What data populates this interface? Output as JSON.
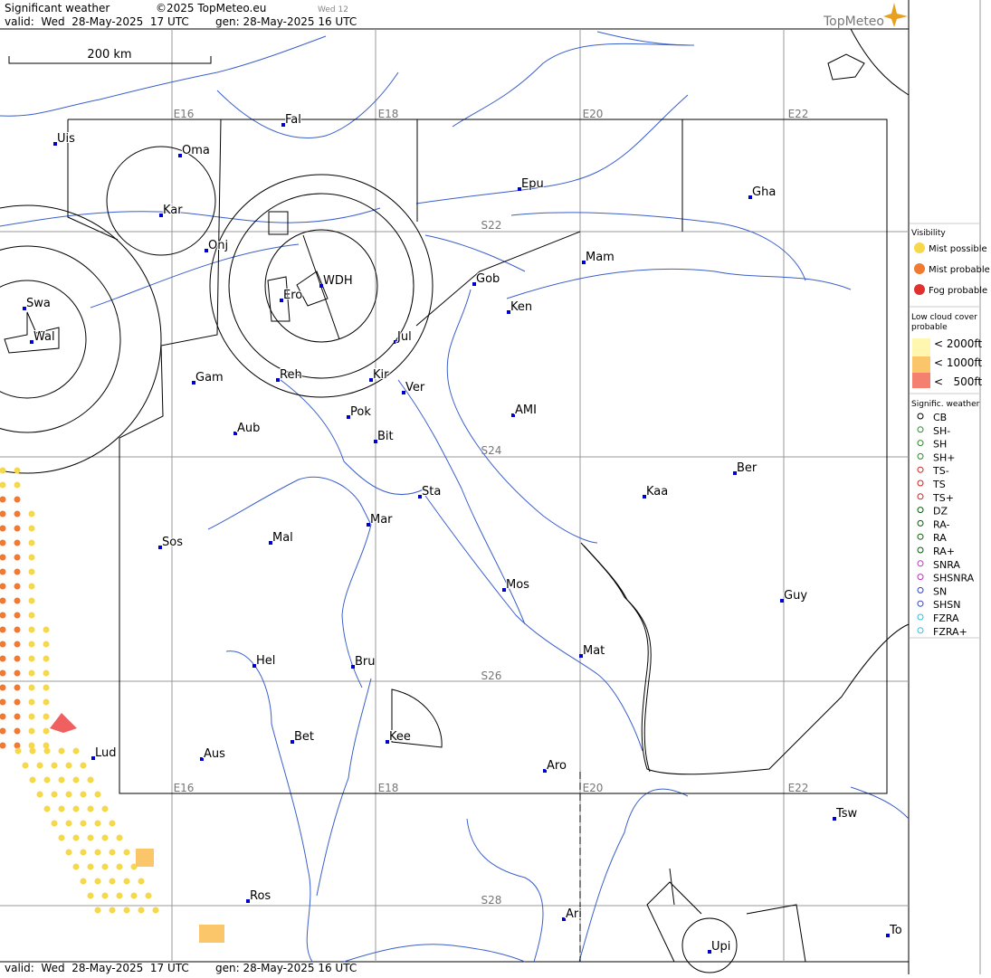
{
  "header": {
    "title": "Significant weather",
    "copyright": "©2025 TopMeteo.eu",
    "day": "Wed 12",
    "valid": "valid:  Wed  28-May-2025  17 UTC",
    "gen": "gen: 28-May-2025 16 UTC",
    "logo": "TopMeteo"
  },
  "scale": "200 km",
  "grid_labels": {
    "lon": [
      "E16",
      "E18",
      "E20",
      "E22"
    ],
    "lat": [
      "S22",
      "S24",
      "S26",
      "S28"
    ]
  },
  "places": [
    "Uis",
    "Fal",
    "Oma",
    "Kar",
    "Onj",
    "Epu",
    "Gha",
    "Mam",
    "Gob",
    "Ken",
    "WDH",
    "Ero",
    "Swa",
    "Wal",
    "Jul",
    "Gam",
    "Reh",
    "Kir",
    "Ver",
    "Pok",
    "AMI",
    "Aub",
    "Bit",
    "Ber",
    "Sta",
    "Kaa",
    "Mar",
    "Sos",
    "Mal",
    "Mos",
    "Guy",
    "Mat",
    "Hel",
    "Bru",
    "Bet",
    "Kee",
    "Lud",
    "Aus",
    "Aro",
    "Tsw",
    "Ros",
    "Ari",
    "Upi",
    "To"
  ],
  "legend": {
    "visibility": {
      "title": "Visibility",
      "items": [
        "Mist possible",
        "Mist probable",
        "Fog probable"
      ]
    },
    "low_cloud": {
      "title": [
        "Low cloud cover",
        "probable"
      ],
      "items": [
        "< 2000ft",
        "< 1000ft",
        "<   500ft"
      ]
    },
    "weather": {
      "title": "Signific. weather",
      "items": [
        "CB",
        "SH-",
        "SH",
        "SH+",
        "TS-",
        "TS",
        "TS+",
        "DZ",
        "RA-",
        "RA",
        "RA+",
        "SNRA",
        "SHSNRA",
        "SN",
        "SHSN",
        "FZRA",
        "FZRA+"
      ]
    }
  }
}
